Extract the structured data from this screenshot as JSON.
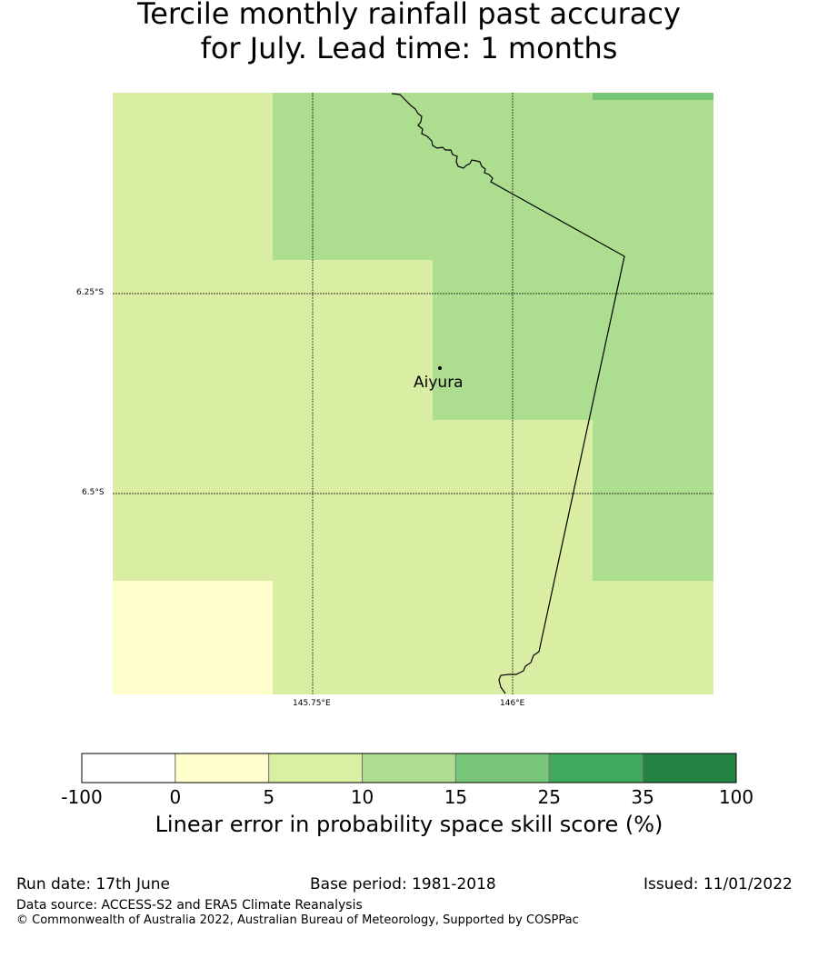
{
  "title_line1": "Tercile monthly rainfall past accuracy",
  "title_line2": "for July. Lead time: 1 months",
  "map": {
    "lat_labels": [
      "6.25°S",
      "6.5°S"
    ],
    "lon_labels": [
      "145.75°E",
      "146°E"
    ],
    "place": "Aiyura",
    "cell_value_bins": {
      "light_yellow": "0-5",
      "yellow_green": "5-10",
      "light_green": "10-15",
      "green": "15-25"
    }
  },
  "colorbar": {
    "ticks": [
      "-100",
      "0",
      "5",
      "10",
      "15",
      "25",
      "35",
      "100"
    ],
    "colors": [
      "#ffffff",
      "#ffffcc",
      "#d9f0a3",
      "#addd8e",
      "#78c679",
      "#41ab5d",
      "#238443"
    ],
    "label": "Linear error in probability space skill score (%)"
  },
  "footer": {
    "run_date": "Run date: 17th June",
    "base_period": "Base period: 1981-2018",
    "issued": "Issued: 11/01/2022",
    "data_source": "Data source: ACCESS-S2 and ERA5 Climate Reanalysis",
    "copyright": "© Commonwealth of Australia 2022, Australian Bureau of Meteorology, Supported by COSPPac"
  }
}
